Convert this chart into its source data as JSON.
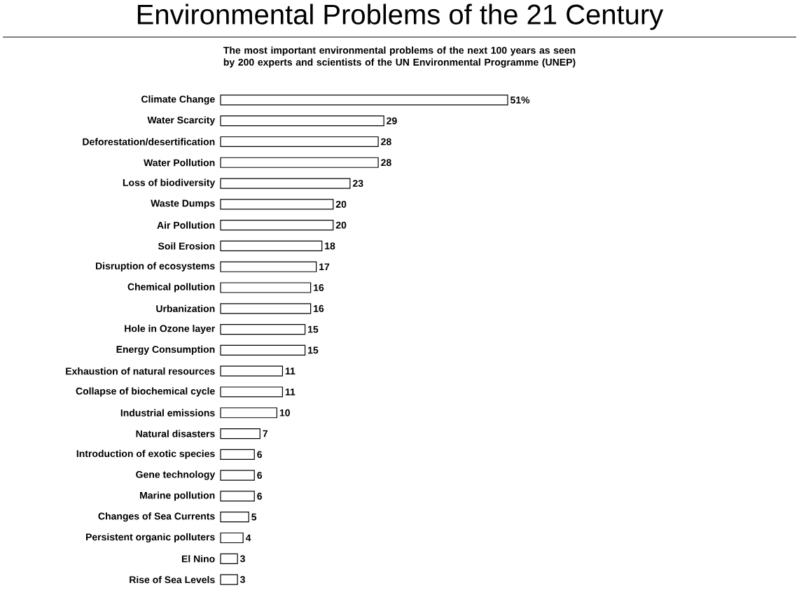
{
  "chart_data": {
    "type": "bar",
    "orientation": "horizontal",
    "title": "Environmental Problems of the 21 Century",
    "subtitle": "The most important environmental problems of the next 100 years as seen by 200 experts and scientists  of the UN Environmental Programme (UNEP)",
    "categories": [
      "Climate Change",
      "Water Scarcity",
      "Deforestation/desertification",
      "Water Pollution",
      "Loss of biodiversity",
      "Waste Dumps",
      "Air Pollution",
      "Soil Erosion",
      "Disruption of ecosystems",
      "Chemical pollution",
      "Urbanization",
      "Hole in Ozone layer",
      "Energy Consumption",
      "Exhaustion of natural resources",
      "Collapse of biochemical cycle",
      "Industrial emissions",
      "Natural disasters",
      "Introduction of exotic species",
      "Gene technology",
      "Marine pollution",
      "Changes of Sea Currents",
      "Persistent organic polluters",
      "El Nino",
      "Rise of Sea Levels"
    ],
    "values": [
      51,
      29,
      28,
      28,
      23,
      20,
      20,
      18,
      17,
      16,
      16,
      15,
      15,
      11,
      11,
      10,
      7,
      6,
      6,
      6,
      5,
      4,
      3,
      3
    ],
    "value_labels": [
      "51%",
      "29",
      "28",
      "28",
      "23",
      "20",
      "20",
      "18",
      "17",
      "16",
      "16",
      "15",
      "15",
      "11",
      "11",
      "10",
      "7",
      "6",
      "6",
      "6",
      "5",
      "4",
      "3",
      "3"
    ],
    "color": "#ffffff"
  }
}
